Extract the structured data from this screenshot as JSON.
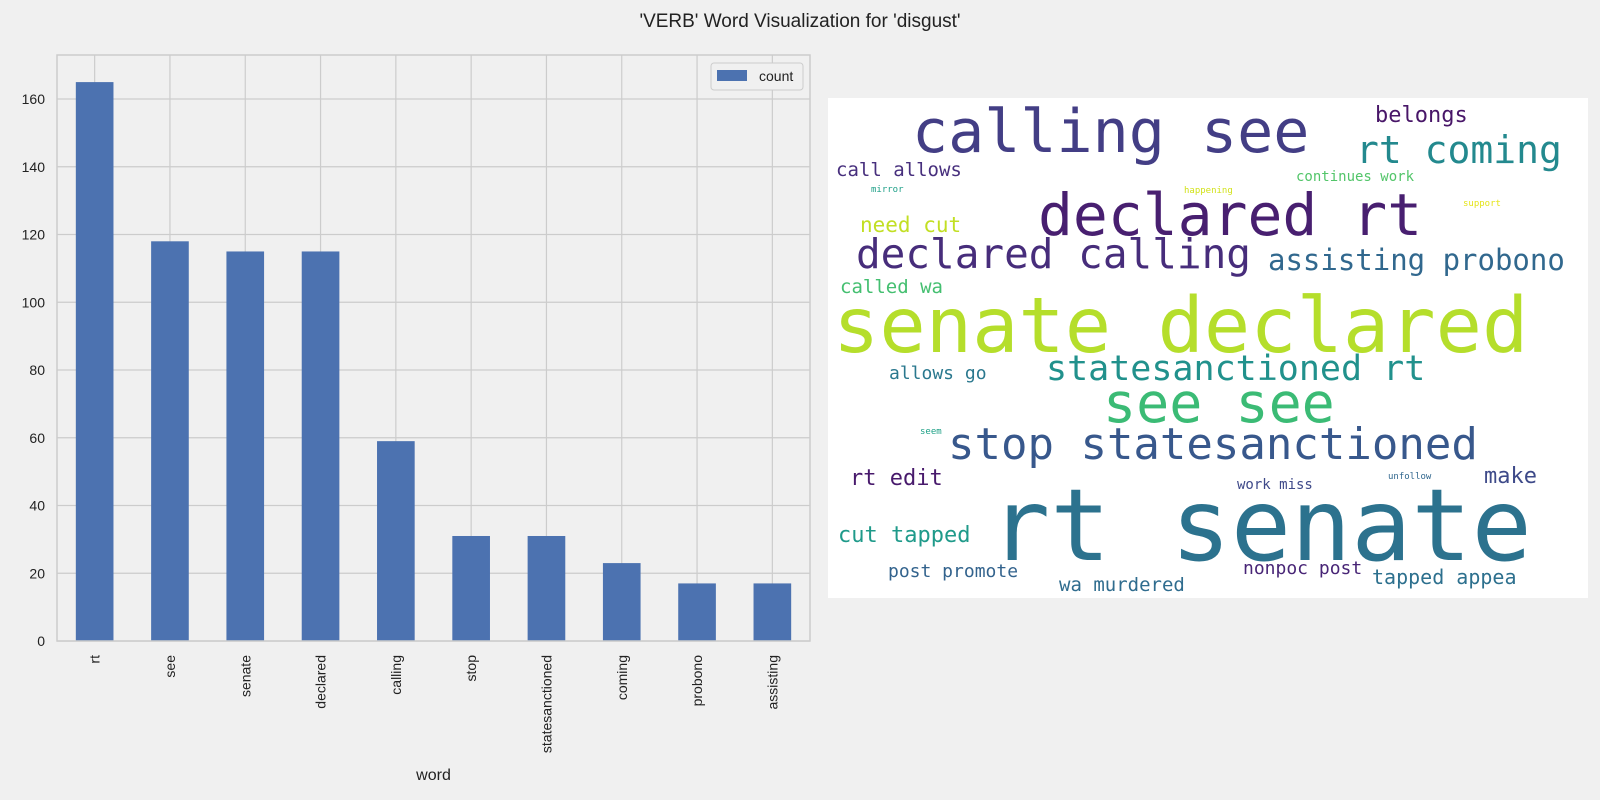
{
  "figure_title": "'VERB' Word Visualization for 'disgust'",
  "colors": {
    "bar": "#4c72b0",
    "grid": "#cccccc",
    "axes_bg": "#f0f0f0",
    "figure_bg": "#f0f0f0",
    "wordcloud_bg": "#ffffff"
  },
  "chart_data": [
    {
      "type": "bar",
      "categories": [
        "rt",
        "see",
        "senate",
        "declared",
        "calling",
        "stop",
        "statesanctioned",
        "coming",
        "probono",
        "assisting"
      ],
      "series": [
        {
          "name": "count",
          "values": [
            165,
            118,
            115,
            115,
            59,
            31,
            31,
            23,
            17,
            17
          ]
        }
      ],
      "xlabel": "word",
      "ylabel": "",
      "ylim": [
        0,
        173
      ],
      "yticks": [
        0,
        20,
        40,
        60,
        80,
        100,
        120,
        140,
        160
      ],
      "grid": true,
      "legend": "top-right",
      "legend_label": "count"
    }
  ],
  "wordcloud": {
    "words": [
      {
        "text": "senate declared",
        "color": "#b5de2b"
      },
      {
        "text": "rt senate",
        "color": "#2c728e"
      },
      {
        "text": "calling see",
        "color": "#433e85"
      },
      {
        "text": "declared rt",
        "color": "#481f70"
      },
      {
        "text": "declared calling",
        "color": "#472d7b"
      },
      {
        "text": "stop statesanctioned",
        "color": "#38588c"
      },
      {
        "text": "see see",
        "color": "#3bbb75"
      },
      {
        "text": "statesanctioned rt",
        "color": "#21918c"
      },
      {
        "text": "rt coming",
        "color": "#23898e"
      },
      {
        "text": "assisting probono",
        "color": "#31688e"
      },
      {
        "text": "belongs",
        "color": "#481668"
      },
      {
        "text": "call allows",
        "color": "#472f7d"
      },
      {
        "text": "continues work",
        "color": "#52c569"
      },
      {
        "text": "mirror",
        "color": "#1fa088"
      },
      {
        "text": "happening",
        "color": "#d2e21b"
      },
      {
        "text": "support",
        "color": "#e5e419"
      },
      {
        "text": "need cut",
        "color": "#c2df23"
      },
      {
        "text": "called wa",
        "color": "#44bf70"
      },
      {
        "text": "allows go",
        "color": "#2a788e"
      },
      {
        "text": "seem",
        "color": "#1fa187"
      },
      {
        "text": "rt edit",
        "color": "#481a6c"
      },
      {
        "text": "make",
        "color": "#3e4a89"
      },
      {
        "text": "work miss",
        "color": "#3e4989"
      },
      {
        "text": "unfollow",
        "color": "#31678e"
      },
      {
        "text": "cut tapped",
        "color": "#1f9a8a"
      },
      {
        "text": "post promote",
        "color": "#33638d"
      },
      {
        "text": "nonpoc post",
        "color": "#482576"
      },
      {
        "text": "tapped appea",
        "color": "#2d708e"
      },
      {
        "text": "wa murdered",
        "color": "#2f6c8e"
      }
    ]
  }
}
